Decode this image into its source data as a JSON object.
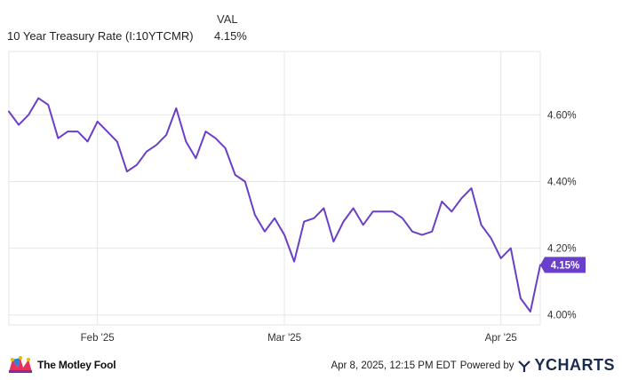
{
  "legend": {
    "header": "VAL",
    "series_name": "10 Year Treasury Rate (I:10YTCMR)",
    "series_value": "4.15%"
  },
  "footer": {
    "brand": "The Motley Fool",
    "date_text": "Apr 8, 2025, 12:15 PM EDT",
    "powered_by": "Powered by",
    "ycharts": "YCHARTS"
  },
  "colors": {
    "line": "#6a3fc9",
    "grid": "#e6e6e6",
    "label_badge": "#6a3fc9"
  },
  "chart_data": {
    "type": "line",
    "series": [
      {
        "name": "10 Year Treasury Rate (I:10YTCMR)",
        "values": [
          4.61,
          4.57,
          4.6,
          4.65,
          4.63,
          4.53,
          4.55,
          4.55,
          4.52,
          4.58,
          4.55,
          4.52,
          4.43,
          4.45,
          4.49,
          4.51,
          4.54,
          4.62,
          4.52,
          4.47,
          4.55,
          4.53,
          4.5,
          4.42,
          4.4,
          4.3,
          4.25,
          4.29,
          4.24,
          4.16,
          4.28,
          4.29,
          4.32,
          4.22,
          4.28,
          4.32,
          4.27,
          4.31,
          4.31,
          4.31,
          4.29,
          4.25,
          4.24,
          4.25,
          4.34,
          4.31,
          4.35,
          4.38,
          4.27,
          4.23,
          4.17,
          4.2,
          4.05,
          4.01,
          4.15
        ]
      }
    ],
    "x_ticks": [
      {
        "label": "Feb '25",
        "index": 9
      },
      {
        "label": "Mar '25",
        "index": 28
      },
      {
        "label": "Apr '25",
        "index": 50
      }
    ],
    "y_ticks": [
      "4.00%",
      "4.20%",
      "4.40%",
      "4.60%"
    ],
    "y_tick_values": [
      4.0,
      4.2,
      4.4,
      4.6
    ],
    "ylim": [
      3.97,
      4.79
    ],
    "last_label": "4.15%",
    "grid": true
  }
}
